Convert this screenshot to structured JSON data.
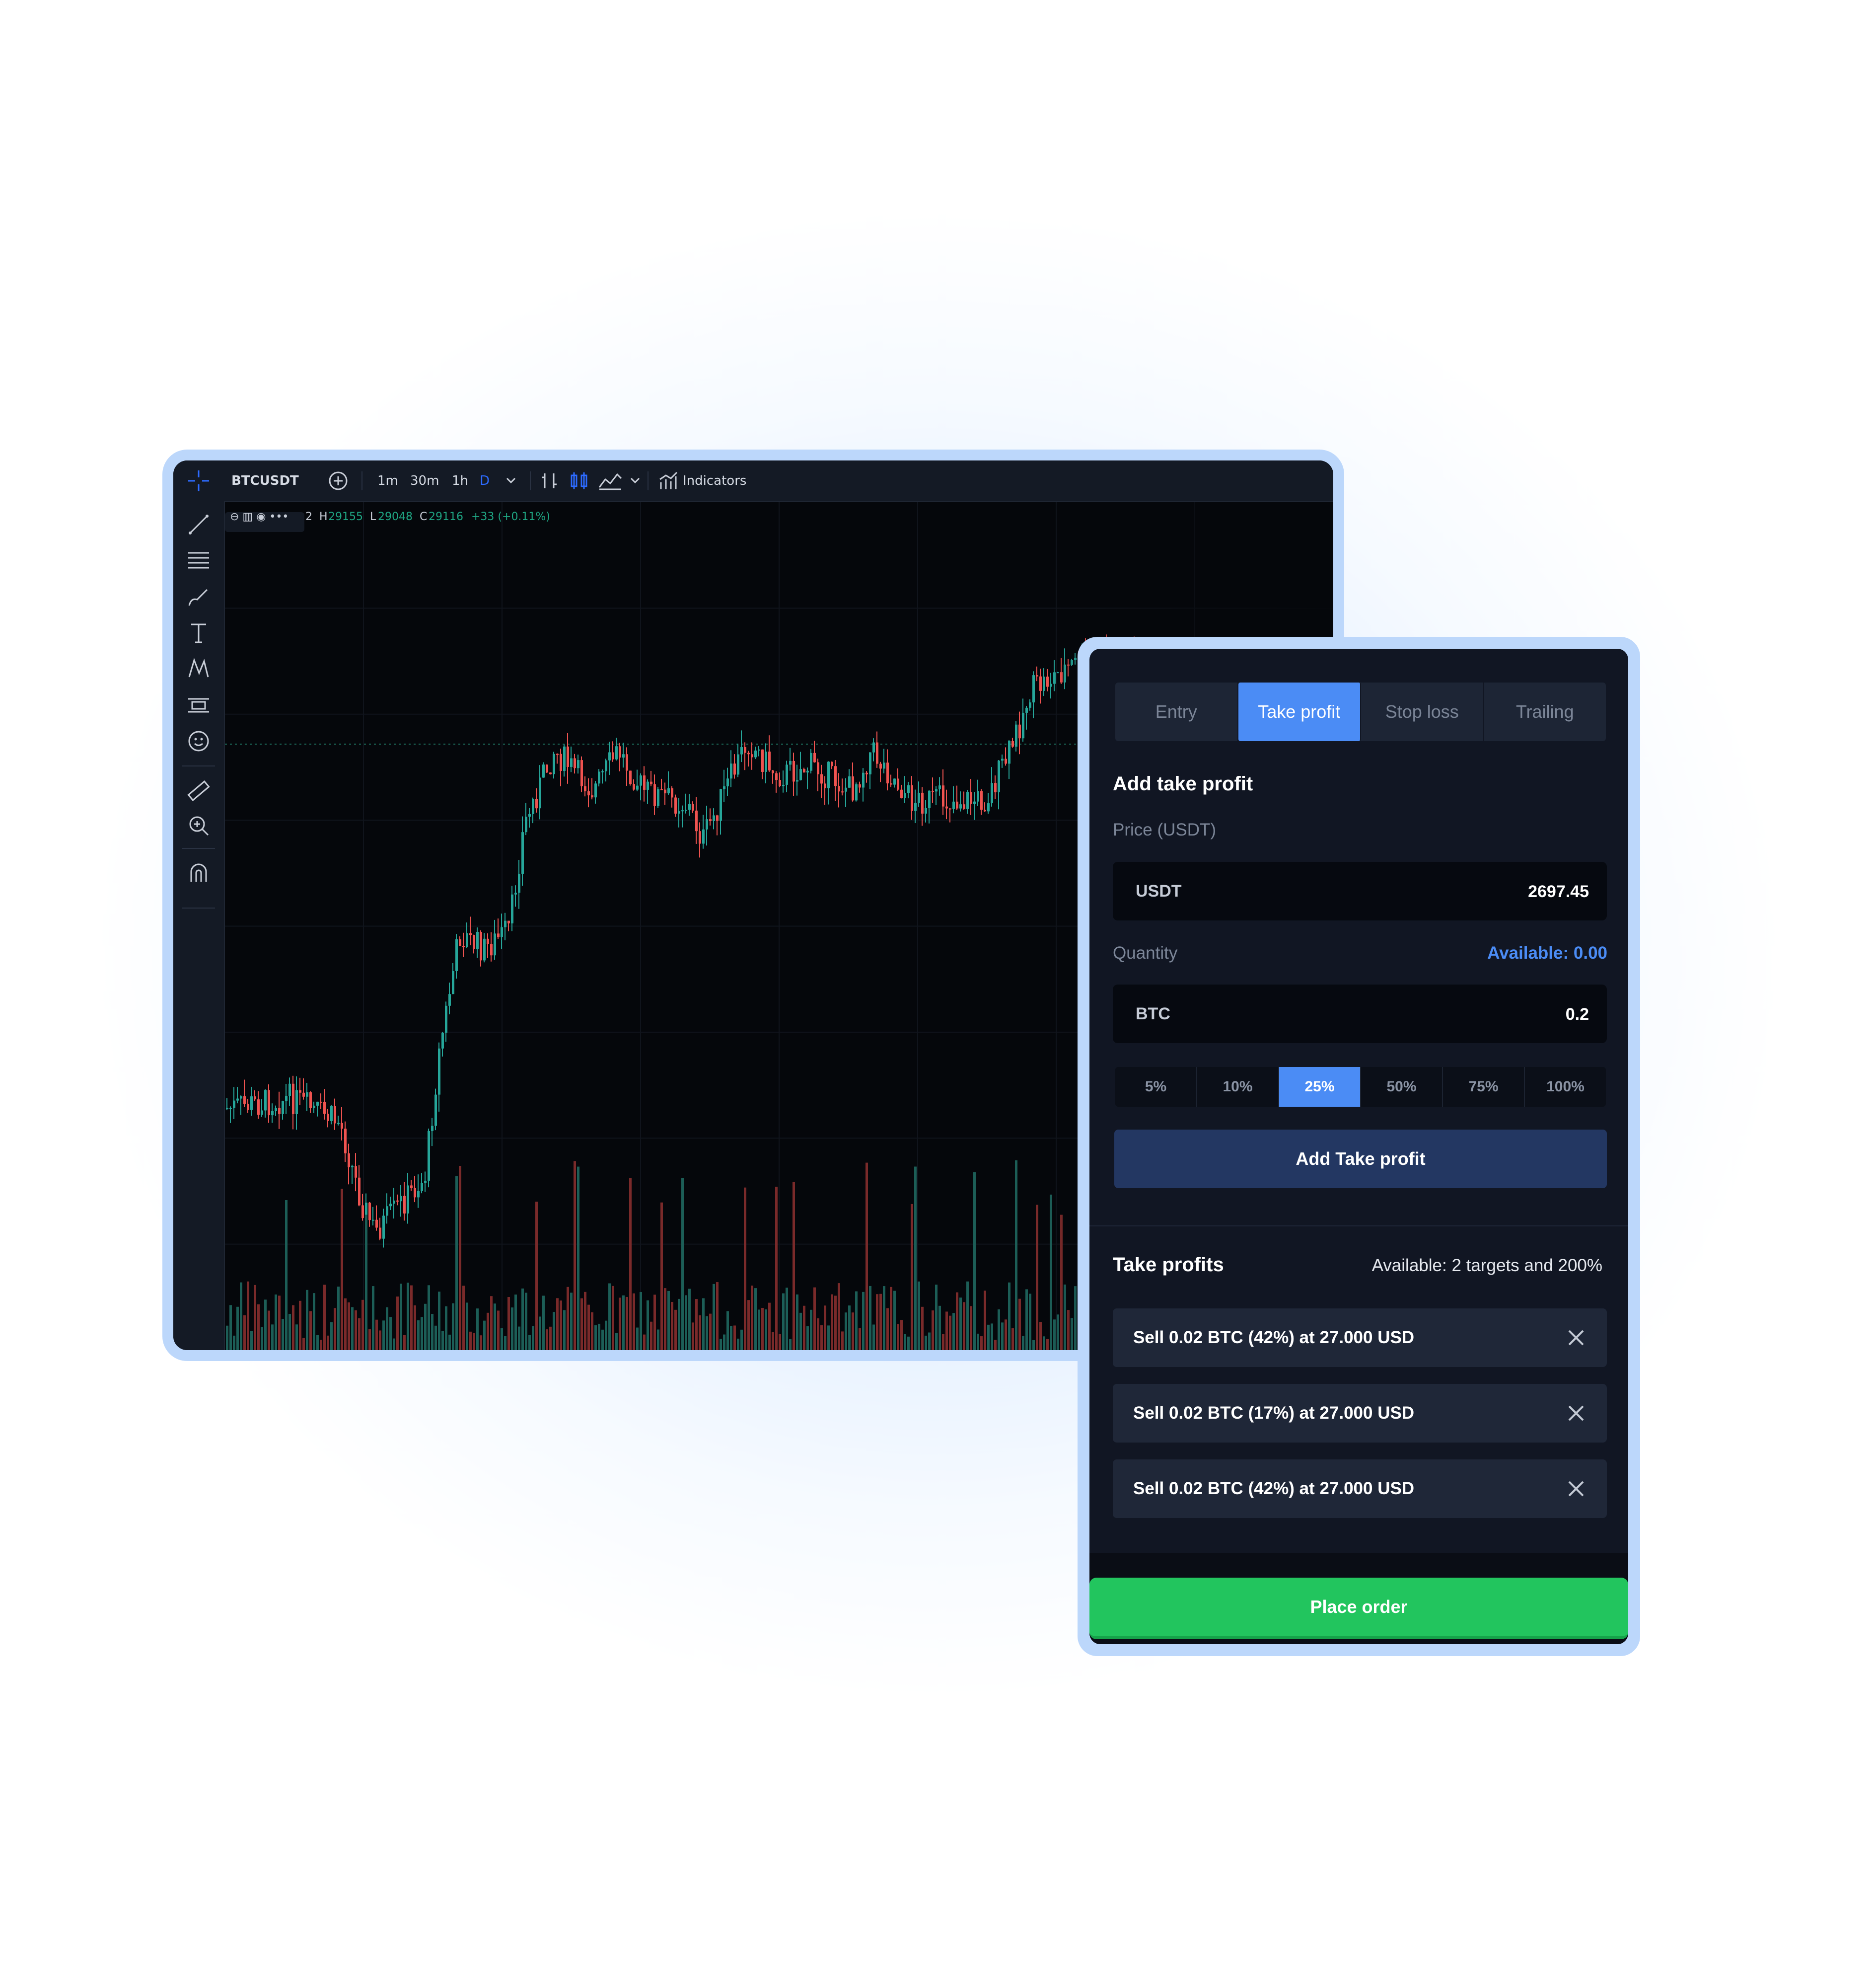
{
  "chart": {
    "symbol": "BTCUSDT",
    "timeframes": [
      "1m",
      "30m",
      "1h",
      "D"
    ],
    "active_timeframe": "D",
    "indicators_label": "Indicators",
    "legend": {
      "prefix": "2",
      "high_key": "H",
      "high": "29155",
      "low_key": "L",
      "low": "29048",
      "close_key": "C",
      "close": "29116",
      "change": "+33 (+0.11%)"
    },
    "colors": {
      "up": "#26a69a",
      "down": "#ef5350",
      "accent": "#2d6bff"
    },
    "tools": [
      "crosshair-icon",
      "trend-line-icon",
      "fib-lines-icon",
      "brush-icon",
      "text-icon",
      "pattern-icon",
      "forecast-icon",
      "emoji-icon",
      "ruler-icon",
      "zoom-icon",
      "magnet-icon"
    ]
  },
  "order": {
    "tabs": [
      {
        "label": "Entry"
      },
      {
        "label": "Take profit"
      },
      {
        "label": "Stop loss"
      },
      {
        "label": "Trailing"
      }
    ],
    "active_tab": "Take profit",
    "add_title": "Add take profit",
    "price_label": "Price (USDT)",
    "price_unit": "USDT",
    "price_value": "2697.45",
    "quantity_label": "Quantity",
    "available": "Available: 0.00",
    "quantity_unit": "BTC",
    "quantity_value": "0.2",
    "percents": [
      "5%",
      "10%",
      "25%",
      "50%",
      "75%",
      "100%"
    ],
    "active_percent": "25%",
    "add_button": "Add Take profit",
    "list_title": "Take profits",
    "targets_available": "Available: 2 targets and 200%",
    "take_profits": [
      {
        "text": "Sell 0.02 BTC (42%) at 27.000 USD"
      },
      {
        "text": "Sell 0.02 BTC (17%) at 27.000 USD"
      },
      {
        "text": "Sell 0.02 BTC (42%) at 27.000 USD"
      }
    ],
    "place_button": "Place order",
    "colors": {
      "accent": "#4b8cf5",
      "place": "#22c55e",
      "panel": "#111623"
    }
  }
}
